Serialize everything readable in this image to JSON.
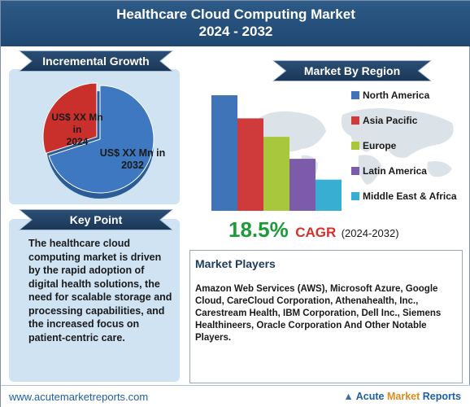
{
  "header": {
    "title_line1": "Healthcare Cloud Computing Market",
    "title_line2": "2024 - 2032"
  },
  "incremental": {
    "title": "Incremental Growth",
    "label_2024": [
      "US$ XX Mn in",
      "2024"
    ],
    "label_2032": [
      "US$ XX Mn in",
      "2032"
    ]
  },
  "key_point": {
    "title": "Key Point",
    "text": "The healthcare cloud computing market is driven by the rapid adoption of digital health solutions, the need for scalable storage and processing capabilities, and the increased focus on patient-centric care."
  },
  "region": {
    "title": "Market By Region"
  },
  "chart_data": [
    {
      "type": "pie",
      "title": "Incremental Growth",
      "slices": [
        {
          "label": "US$ XX Mn in 2024",
          "value": 30,
          "color": "#c9302c"
        },
        {
          "label": "US$ XX Mn in 2032",
          "value": 70,
          "color": "#3d78c0"
        }
      ]
    },
    {
      "type": "bar",
      "title": "Market By Region",
      "categories": [
        "North America",
        "Asia Pacific",
        "Europe",
        "Latin America",
        "Middle East & Africa"
      ],
      "values": [
        100,
        80,
        64,
        45,
        27
      ],
      "colors": [
        "#3f74b8",
        "#cf3b3b",
        "#a9c73d",
        "#7d5bab",
        "#39aed3"
      ]
    }
  ],
  "cagr": {
    "value": "18.5%",
    "word": "CAGR",
    "period": "(2024-2032)"
  },
  "players": {
    "title": "Market Players",
    "text": "Amazon Web Services (AWS), Microsoft Azure, Google Cloud, CareCloud Corporation, Athenahealth, Inc., Carestream Health, IBM Corporation, Dell Inc., Siemens Healthineers, Oracle Corporation And Other Notable Players."
  },
  "footer": {
    "url": "www.acutemarketreports.com",
    "brand_1": "Acute",
    "brand_2": "Market",
    "brand_3": "Reports"
  }
}
